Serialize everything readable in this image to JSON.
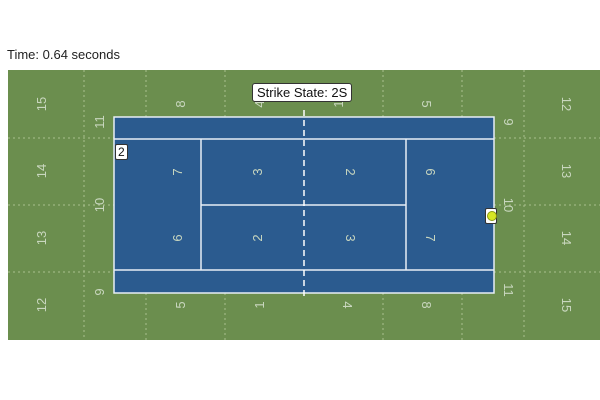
{
  "time_label": "Time: 0.64 seconds",
  "strike_state": "Strike State: 2S",
  "players": {
    "left_tag": "2",
    "right_tag": ""
  },
  "colors": {
    "field": "#6b8e4e",
    "court": "#2b5b8f",
    "lines": "#ffffff",
    "ball": "#d6e625"
  },
  "zones": {
    "outer_left": [
      "15",
      "14",
      "13",
      "12"
    ],
    "outer_right": [
      "12",
      "13",
      "14",
      "15"
    ],
    "top_row": [
      "8",
      "4",
      "1",
      "5"
    ],
    "bottom_row": [
      "5",
      "1",
      "4",
      "8"
    ],
    "side_left": [
      "11",
      "10",
      "9"
    ],
    "side_right": [
      "9",
      "10",
      "11"
    ],
    "inner_left": [
      "7",
      "6"
    ],
    "center_left": [
      "3",
      "2"
    ],
    "center_right": [
      "2",
      "3"
    ],
    "inner_right": [
      "6",
      "7"
    ]
  }
}
